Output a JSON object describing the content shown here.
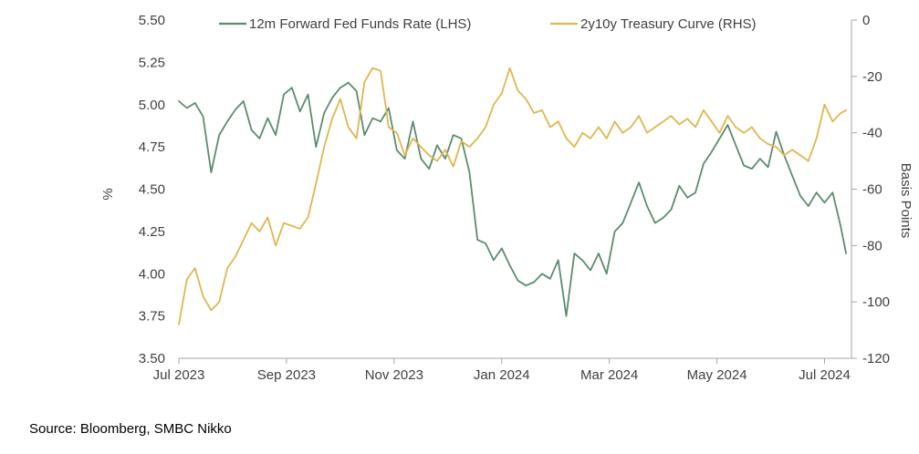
{
  "chart_data": {
    "type": "line",
    "title": "",
    "xlabel": "",
    "ylabel": "%",
    "y2label": "Basis Points",
    "x_tick_labels": [
      "Jul 2023",
      "Sep 2023",
      "Nov 2023",
      "Jan 2024",
      "Mar 2024",
      "May 2024",
      "Jul 2024"
    ],
    "x_range": [
      0,
      12.5
    ],
    "ylim": [
      3.5,
      5.5
    ],
    "y_ticks": [
      "3.50",
      "3.75",
      "4.00",
      "4.25",
      "4.50",
      "4.75",
      "5.00",
      "5.25",
      "5.50"
    ],
    "y2lim": [
      -120,
      0
    ],
    "y2_ticks": [
      "-120",
      "-100",
      "-80",
      "-60",
      "-40",
      "-20",
      "0"
    ],
    "legend_position": "top",
    "series": [
      {
        "name": "12m Forward Fed Funds Rate (LHS)",
        "axis": "left",
        "color": "#5b8c6e",
        "x": [
          0,
          0.15,
          0.3,
          0.45,
          0.6,
          0.75,
          0.9,
          1.05,
          1.2,
          1.35,
          1.5,
          1.65,
          1.8,
          1.95,
          2.1,
          2.25,
          2.4,
          2.55,
          2.7,
          2.85,
          3.0,
          3.15,
          3.3,
          3.45,
          3.6,
          3.75,
          3.9,
          4.05,
          4.2,
          4.35,
          4.5,
          4.65,
          4.8,
          4.95,
          5.1,
          5.25,
          5.4,
          5.55,
          5.7,
          5.85,
          6.0,
          6.15,
          6.3,
          6.45,
          6.6,
          6.75,
          6.9,
          7.05,
          7.2,
          7.35,
          7.5,
          7.65,
          7.8,
          7.95,
          8.1,
          8.25,
          8.4,
          8.55,
          8.7,
          8.85,
          9.0,
          9.15,
          9.3,
          9.45,
          9.6,
          9.75,
          9.9,
          10.05,
          10.2,
          10.35,
          10.5,
          10.65,
          10.8,
          10.95,
          11.1,
          11.25,
          11.4,
          11.55,
          11.7,
          11.85,
          12.0,
          12.15,
          12.3,
          12.4
        ],
        "values": [
          5.02,
          4.98,
          5.01,
          4.93,
          4.6,
          4.82,
          4.9,
          4.97,
          5.02,
          4.85,
          4.8,
          4.92,
          4.82,
          5.06,
          5.1,
          4.96,
          5.06,
          4.75,
          4.95,
          5.04,
          5.1,
          5.13,
          5.08,
          4.82,
          4.92,
          4.9,
          4.98,
          4.73,
          4.68,
          4.9,
          4.68,
          4.62,
          4.76,
          4.68,
          4.82,
          4.8,
          4.6,
          4.2,
          4.18,
          4.08,
          4.15,
          4.05,
          3.96,
          3.93,
          3.95,
          4.0,
          3.97,
          4.08,
          3.75,
          4.12,
          4.08,
          4.02,
          4.12,
          4.0,
          4.25,
          4.3,
          4.42,
          4.54,
          4.4,
          4.3,
          4.33,
          4.38,
          4.52,
          4.45,
          4.48,
          4.65,
          4.72,
          4.8,
          4.88,
          4.76,
          4.64,
          4.62,
          4.68,
          4.63,
          4.84,
          4.7,
          4.58,
          4.46,
          4.4,
          4.48,
          4.42,
          4.48,
          4.28,
          4.12
        ]
      },
      {
        "name": "2y10y Treasury Curve (RHS)",
        "axis": "right",
        "color": "#e0b64e",
        "x": [
          0,
          0.15,
          0.3,
          0.45,
          0.6,
          0.75,
          0.9,
          1.05,
          1.2,
          1.35,
          1.5,
          1.65,
          1.8,
          1.95,
          2.1,
          2.25,
          2.4,
          2.55,
          2.7,
          2.85,
          3.0,
          3.15,
          3.3,
          3.45,
          3.6,
          3.75,
          3.9,
          4.05,
          4.2,
          4.35,
          4.5,
          4.65,
          4.8,
          4.95,
          5.1,
          5.25,
          5.4,
          5.55,
          5.7,
          5.85,
          6.0,
          6.15,
          6.3,
          6.45,
          6.6,
          6.75,
          6.9,
          7.05,
          7.2,
          7.35,
          7.5,
          7.65,
          7.8,
          7.95,
          8.1,
          8.25,
          8.4,
          8.55,
          8.7,
          8.85,
          9.0,
          9.15,
          9.3,
          9.45,
          9.6,
          9.75,
          9.9,
          10.05,
          10.2,
          10.35,
          10.5,
          10.65,
          10.8,
          10.95,
          11.1,
          11.25,
          11.4,
          11.55,
          11.7,
          11.85,
          12.0,
          12.15,
          12.3,
          12.4
        ],
        "values": [
          -108,
          -92,
          -88,
          -98,
          -103,
          -100,
          -88,
          -84,
          -78,
          -72,
          -75,
          -70,
          -80,
          -72,
          -73,
          -74,
          -70,
          -58,
          -45,
          -35,
          -28,
          -38,
          -42,
          -22,
          -17,
          -18,
          -38,
          -40,
          -48,
          -42,
          -45,
          -48,
          -50,
          -46,
          -52,
          -43,
          -45,
          -42,
          -38,
          -30,
          -26,
          -17,
          -25,
          -28,
          -33,
          -32,
          -38,
          -36,
          -42,
          -45,
          -40,
          -42,
          -38,
          -42,
          -36,
          -40,
          -38,
          -34,
          -40,
          -38,
          -36,
          -34,
          -37,
          -35,
          -38,
          -32,
          -36,
          -40,
          -34,
          -38,
          -40,
          -38,
          -42,
          -44,
          -45,
          -48,
          -46,
          -48,
          -50,
          -42,
          -30,
          -36,
          -33,
          -32
        ]
      }
    ]
  },
  "source": "Source: Bloomberg, SMBC Nikko"
}
